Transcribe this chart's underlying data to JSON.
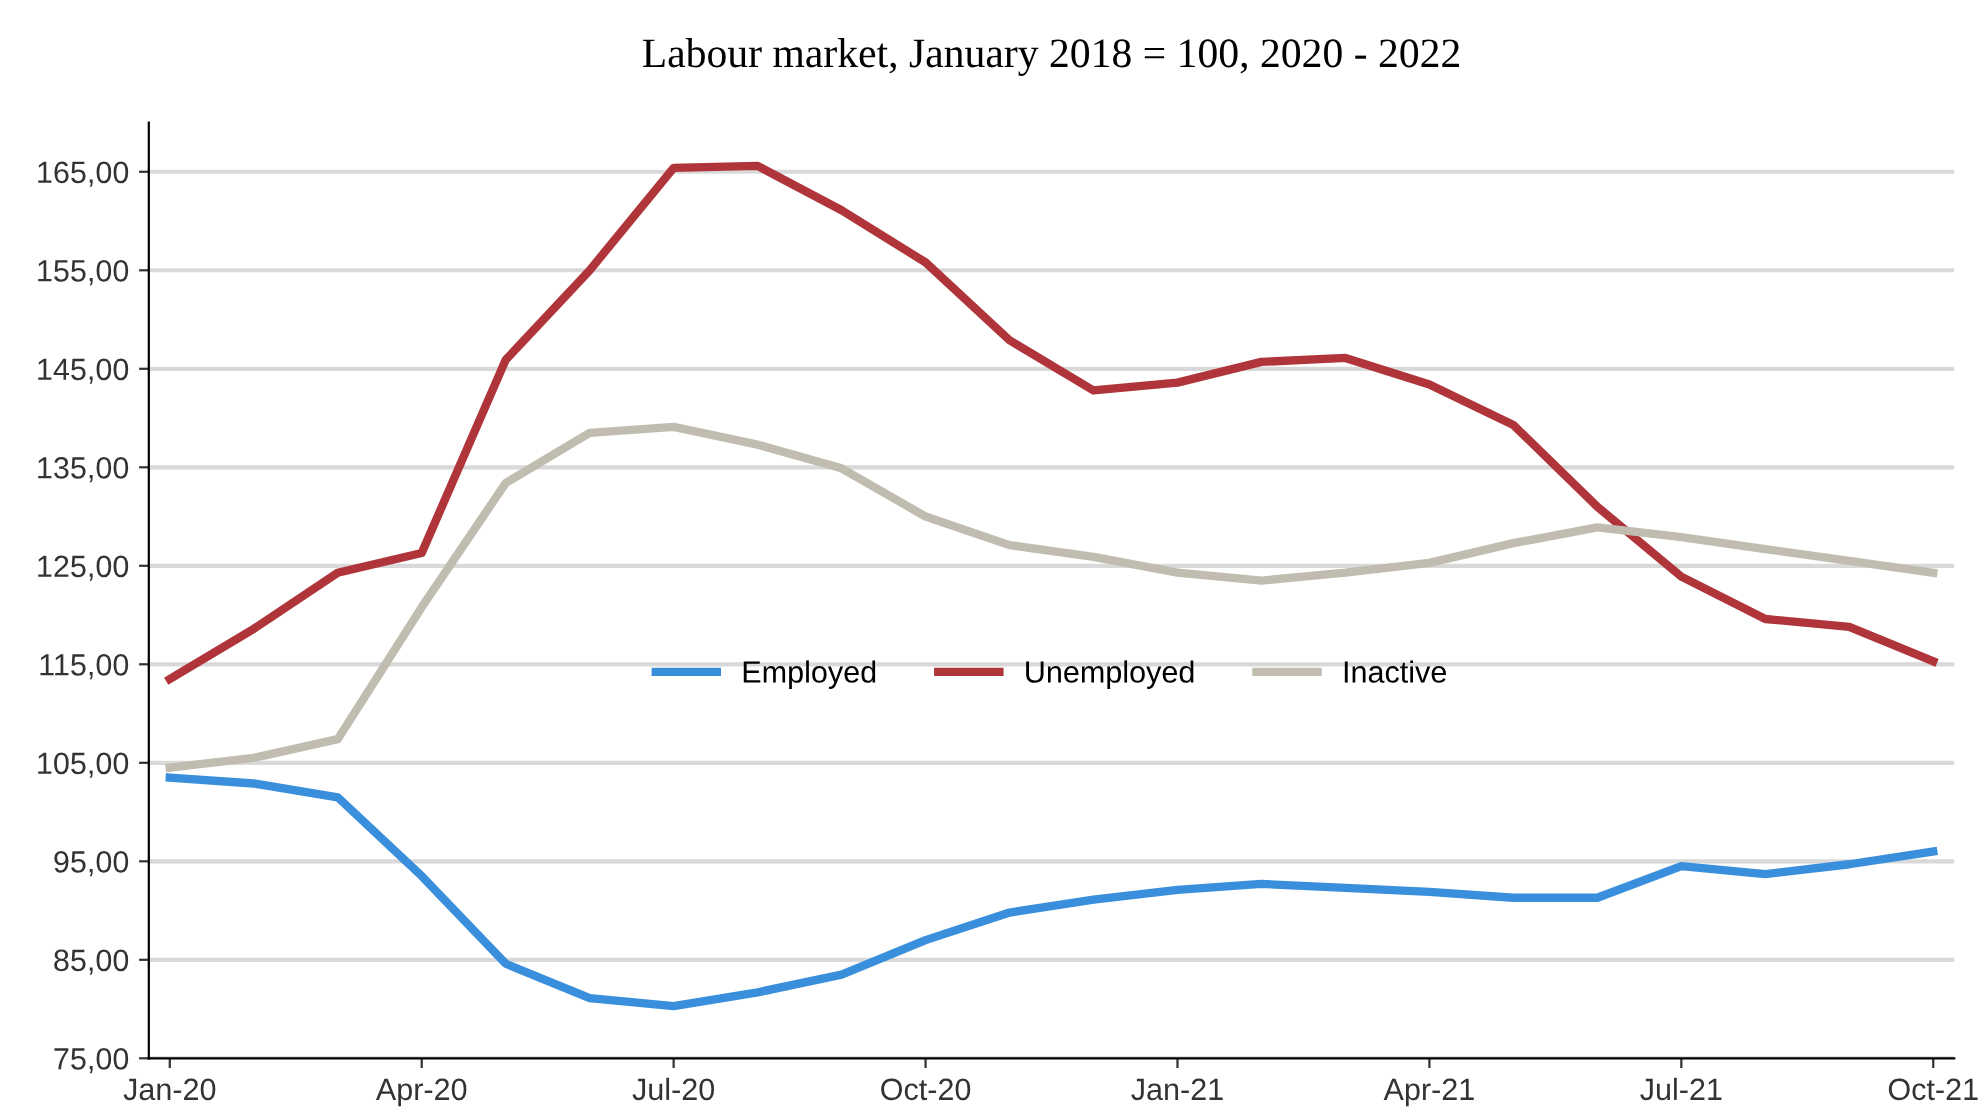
{
  "chart_data": {
    "type": "line",
    "title": "Labour market, January 2018 = 100, 2020 - 2022",
    "categories": [
      "Jan-20",
      null,
      null,
      "Apr-20",
      null,
      null,
      "Jul-20",
      null,
      null,
      "Oct-20",
      null,
      null,
      "Jan-21",
      null,
      null,
      "Apr-21",
      null,
      null,
      "Jul-21",
      null,
      null,
      "Oct-21"
    ],
    "series": [
      {
        "name": "Employed",
        "color": "#3a8fdc",
        "values": [
          103.5,
          102.9,
          101.5,
          93.5,
          84.6,
          81.1,
          80.3,
          81.7,
          83.5,
          87.0,
          89.8,
          91.1,
          92.1,
          92.7,
          92.3,
          91.9,
          91.3,
          91.3,
          94.5,
          93.7,
          94.7,
          96.0
        ]
      },
      {
        "name": "Unemployed",
        "color": "#b0353a",
        "values": [
          113.5,
          118.6,
          124.3,
          126.3,
          145.9,
          155.0,
          165.4,
          165.6,
          161.1,
          155.8,
          147.9,
          142.8,
          143.6,
          145.7,
          146.1,
          143.4,
          139.3,
          131.0,
          123.9,
          119.6,
          118.8,
          115.3
        ]
      },
      {
        "name": "Inactive",
        "color": "#c0bdb0",
        "values": [
          104.5,
          105.5,
          107.4,
          120.8,
          133.4,
          138.5,
          139.1,
          137.3,
          134.9,
          130.0,
          127.1,
          125.9,
          124.3,
          123.5,
          124.3,
          125.3,
          127.3,
          128.9,
          127.9,
          126.7,
          125.5,
          124.3
        ]
      }
    ],
    "ylim": [
      75,
      170
    ],
    "yticks": [
      {
        "value": 75,
        "label": "75,00"
      },
      {
        "value": 85,
        "label": "85,00"
      },
      {
        "value": 95,
        "label": "95,00"
      },
      {
        "value": 105,
        "label": "105,00"
      },
      {
        "value": 115,
        "label": "115,00"
      },
      {
        "value": 125,
        "label": "125,00"
      },
      {
        "value": 135,
        "label": "135,00"
      },
      {
        "value": 145,
        "label": "145,00"
      },
      {
        "value": 155,
        "label": "155,00"
      },
      {
        "value": 165,
        "label": "165,00"
      }
    ],
    "grid": "y",
    "legend": "center",
    "marker": "none",
    "line_style": "solid"
  }
}
